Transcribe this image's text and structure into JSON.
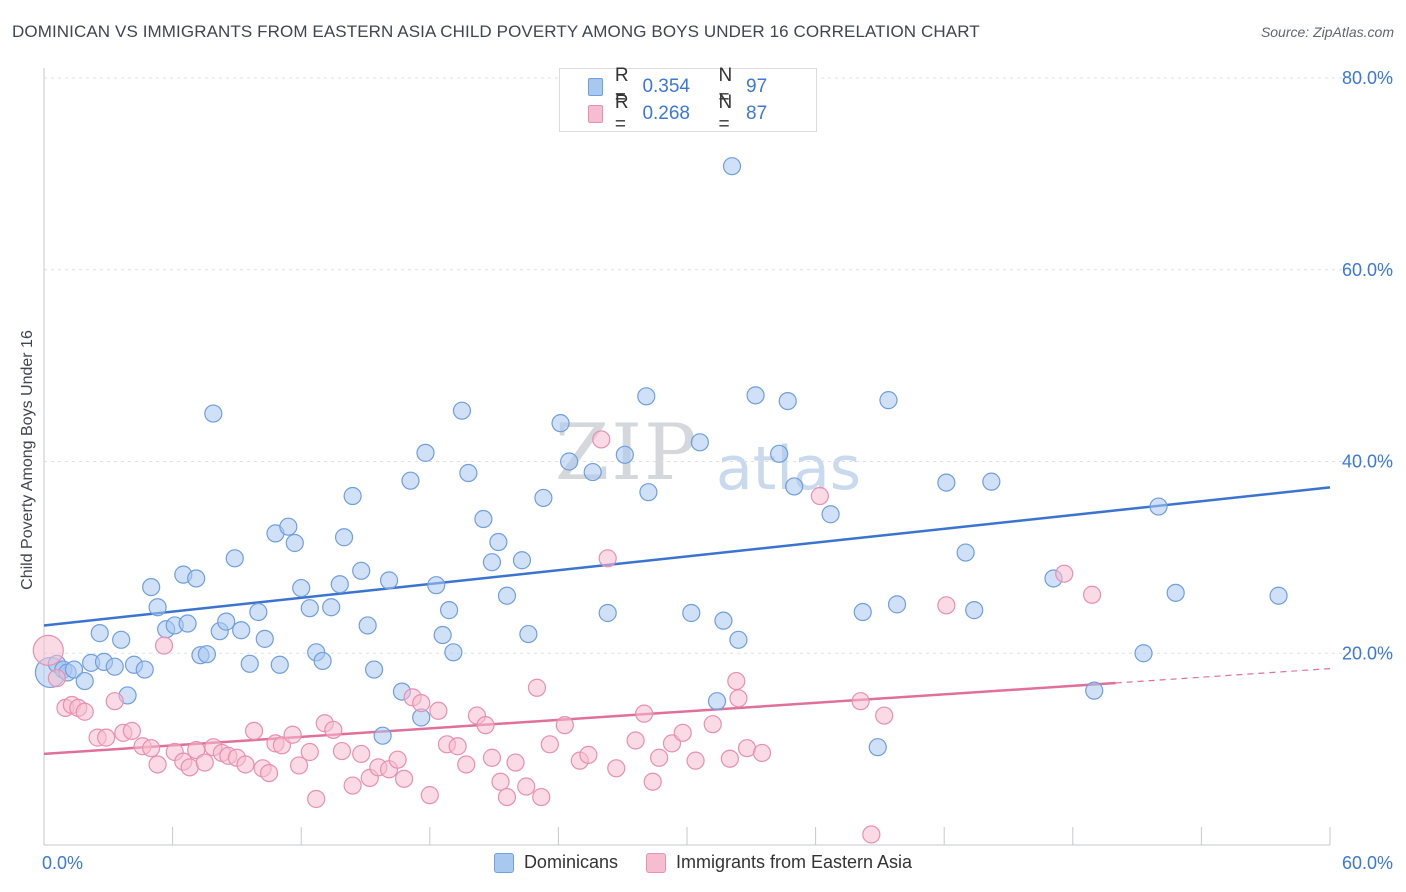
{
  "header": {
    "title": "DOMINICAN VS IMMIGRANTS FROM EASTERN ASIA CHILD POVERTY AMONG BOYS UNDER 16 CORRELATION CHART",
    "source": "Source: ZipAtlas.com"
  },
  "watermark": {
    "zip": "ZIP",
    "atlas": "atlas"
  },
  "legend": {
    "rows": [
      {
        "r_label": "R =",
        "r_value": "0.354",
        "n_label": "N =",
        "n_value": "97"
      },
      {
        "r_label": "R =",
        "r_value": "0.268",
        "n_label": "N =",
        "n_value": "87"
      }
    ]
  },
  "bottom_legend": {
    "series1": "Dominicans",
    "series2": "Immigrants from Eastern Asia"
  },
  "colors": {
    "dominicans_fill": "#a9c8f0",
    "dominicans_stroke": "#6f9fdf",
    "dominicans_line": "#3a73d0",
    "asia_fill": "#f6bdd0",
    "asia_stroke": "#e98fb0",
    "asia_line": "#e0709a",
    "tick_label": "#3b78d8",
    "grid": "#dde1e6"
  },
  "chart_data": {
    "type": "scatter",
    "title": "DOMINICAN VS IMMIGRANTS FROM EASTERN ASIA CHILD POVERTY AMONG BOYS UNDER 16 CORRELATION CHART",
    "xlabel": "",
    "ylabel": "Child Poverty Among Boys Under 16",
    "xlim": [
      0,
      60
    ],
    "ylim": [
      0,
      80
    ],
    "x_tick_labels": [
      "0.0%",
      "60.0%"
    ],
    "y_ticks": [
      20,
      40,
      60,
      80
    ],
    "y_tick_labels": [
      "20.0%",
      "40.0%",
      "60.0%",
      "80.0%"
    ],
    "grid": true,
    "legend_position": "top-center",
    "series": [
      {
        "name": "Dominicans",
        "r": 0.354,
        "n": 97,
        "trend": {
          "x": [
            0,
            60
          ],
          "y": [
            22.9,
            37.3
          ]
        },
        "points": [
          [
            0.3,
            18.0,
            2
          ],
          [
            0.6,
            18.9,
            1
          ],
          [
            0.9,
            18.3,
            1
          ],
          [
            1.1,
            18.0,
            1
          ],
          [
            1.4,
            18.3,
            1
          ],
          [
            1.9,
            17.1,
            1
          ],
          [
            2.2,
            19.0,
            1
          ],
          [
            2.6,
            22.1,
            1
          ],
          [
            2.8,
            19.1,
            1
          ],
          [
            3.3,
            18.6,
            1
          ],
          [
            3.6,
            21.4,
            1
          ],
          [
            3.9,
            15.6,
            1
          ],
          [
            4.2,
            18.8,
            1
          ],
          [
            4.7,
            18.3,
            1
          ],
          [
            5.0,
            26.9,
            1
          ],
          [
            5.3,
            24.8,
            1
          ],
          [
            5.7,
            22.5,
            1
          ],
          [
            6.1,
            22.9,
            1
          ],
          [
            6.5,
            28.2,
            1
          ],
          [
            6.7,
            23.1,
            1
          ],
          [
            7.1,
            27.8,
            1
          ],
          [
            7.3,
            19.8,
            1
          ],
          [
            7.6,
            19.9,
            1
          ],
          [
            7.9,
            45.0,
            1
          ],
          [
            8.2,
            22.3,
            1
          ],
          [
            8.5,
            23.3,
            1
          ],
          [
            8.9,
            29.9,
            1
          ],
          [
            9.2,
            22.4,
            1
          ],
          [
            9.6,
            18.9,
            1
          ],
          [
            10.0,
            24.3,
            1
          ],
          [
            10.3,
            21.5,
            1
          ],
          [
            10.8,
            32.5,
            1
          ],
          [
            11.0,
            18.8,
            1
          ],
          [
            11.4,
            33.2,
            1
          ],
          [
            11.7,
            31.5,
            1
          ],
          [
            12.0,
            26.8,
            1
          ],
          [
            12.4,
            24.7,
            1
          ],
          [
            12.7,
            20.1,
            1
          ],
          [
            13.0,
            19.2,
            1
          ],
          [
            13.4,
            24.8,
            1
          ],
          [
            13.8,
            27.2,
            1
          ],
          [
            14.0,
            32.1,
            1
          ],
          [
            14.4,
            36.4,
            1
          ],
          [
            14.8,
            28.6,
            1
          ],
          [
            15.1,
            22.9,
            1
          ],
          [
            15.4,
            18.3,
            1
          ],
          [
            15.8,
            11.4,
            1
          ],
          [
            16.1,
            27.6,
            1
          ],
          [
            16.7,
            16.0,
            1
          ],
          [
            17.1,
            38.0,
            1
          ],
          [
            17.6,
            13.3,
            1
          ],
          [
            17.8,
            40.9,
            1
          ],
          [
            18.3,
            27.1,
            1
          ],
          [
            18.6,
            21.9,
            1
          ],
          [
            18.9,
            24.5,
            1
          ],
          [
            19.1,
            20.1,
            1
          ],
          [
            19.5,
            45.3,
            1
          ],
          [
            19.8,
            38.8,
            1
          ],
          [
            20.5,
            34.0,
            1
          ],
          [
            20.9,
            29.5,
            1
          ],
          [
            21.2,
            31.6,
            1
          ],
          [
            21.6,
            26.0,
            1
          ],
          [
            22.3,
            29.7,
            1
          ],
          [
            22.6,
            22.0,
            1
          ],
          [
            23.3,
            36.2,
            1
          ],
          [
            24.1,
            44.0,
            1
          ],
          [
            24.5,
            40.0,
            1
          ],
          [
            25.6,
            38.9,
            1
          ],
          [
            26.3,
            24.2,
            1
          ],
          [
            27.1,
            40.7,
            1
          ],
          [
            28.1,
            46.8,
            1
          ],
          [
            28.2,
            36.8,
            1
          ],
          [
            30.2,
            24.2,
            1
          ],
          [
            30.6,
            42.0,
            1
          ],
          [
            31.4,
            15.0,
            1
          ],
          [
            31.7,
            23.4,
            1
          ],
          [
            32.1,
            70.8,
            1
          ],
          [
            32.4,
            21.4,
            1
          ],
          [
            33.2,
            46.9,
            1
          ],
          [
            34.3,
            40.8,
            1
          ],
          [
            34.7,
            46.3,
            1
          ],
          [
            35.0,
            37.4,
            1
          ],
          [
            36.7,
            34.5,
            1
          ],
          [
            38.2,
            24.3,
            1
          ],
          [
            38.9,
            10.2,
            1
          ],
          [
            39.4,
            46.4,
            1
          ],
          [
            39.8,
            25.1,
            1
          ],
          [
            42.1,
            37.8,
            1
          ],
          [
            43.0,
            30.5,
            1
          ],
          [
            43.4,
            24.5,
            1
          ],
          [
            44.2,
            37.9,
            1
          ],
          [
            47.1,
            27.8,
            1
          ],
          [
            49.0,
            16.1,
            1
          ],
          [
            51.3,
            20.0,
            1
          ],
          [
            52.0,
            35.3,
            1
          ],
          [
            52.8,
            26.3,
            1
          ],
          [
            57.6,
            26.0,
            1
          ]
        ]
      },
      {
        "name": "Immigrants from Eastern Asia",
        "r": 0.268,
        "n": 87,
        "trend": {
          "x": [
            0,
            50
          ],
          "y": [
            9.5,
            16.9
          ]
        },
        "trend_extension": {
          "x": [
            50,
            60
          ],
          "y": [
            16.9,
            18.4
          ]
        },
        "points": [
          [
            0.2,
            20.3,
            2
          ],
          [
            0.6,
            17.4,
            1
          ],
          [
            1.0,
            14.3,
            1
          ],
          [
            1.3,
            14.6,
            1
          ],
          [
            1.6,
            14.3,
            1
          ],
          [
            1.9,
            13.9,
            1
          ],
          [
            2.5,
            11.2,
            1
          ],
          [
            2.9,
            11.2,
            1
          ],
          [
            3.3,
            15.0,
            1
          ],
          [
            3.7,
            11.7,
            1
          ],
          [
            4.1,
            11.9,
            1
          ],
          [
            4.6,
            10.3,
            1
          ],
          [
            5.0,
            10.1,
            1
          ],
          [
            5.3,
            8.4,
            1
          ],
          [
            5.6,
            20.8,
            1
          ],
          [
            6.1,
            9.7,
            1
          ],
          [
            6.5,
            8.7,
            1
          ],
          [
            6.8,
            8.1,
            1
          ],
          [
            7.1,
            9.9,
            1
          ],
          [
            7.5,
            8.6,
            1
          ],
          [
            7.9,
            10.2,
            1
          ],
          [
            8.3,
            9.6,
            1
          ],
          [
            8.6,
            9.3,
            1
          ],
          [
            9.0,
            9.1,
            1
          ],
          [
            9.4,
            8.4,
            1
          ],
          [
            9.8,
            11.9,
            1
          ],
          [
            10.2,
            8.0,
            1
          ],
          [
            10.5,
            7.5,
            1
          ],
          [
            10.8,
            10.6,
            1
          ],
          [
            11.1,
            10.4,
            1
          ],
          [
            11.6,
            11.5,
            1
          ],
          [
            11.9,
            8.3,
            1
          ],
          [
            12.4,
            9.7,
            1
          ],
          [
            12.7,
            4.8,
            1
          ],
          [
            13.1,
            12.7,
            1
          ],
          [
            13.5,
            12.0,
            1
          ],
          [
            13.9,
            9.8,
            1
          ],
          [
            14.4,
            6.2,
            1
          ],
          [
            14.8,
            9.5,
            1
          ],
          [
            15.2,
            7.0,
            1
          ],
          [
            15.6,
            8.1,
            1
          ],
          [
            16.1,
            7.9,
            1
          ],
          [
            16.5,
            8.9,
            1
          ],
          [
            16.8,
            6.9,
            1
          ],
          [
            17.2,
            15.4,
            1
          ],
          [
            17.6,
            14.8,
            1
          ],
          [
            18.0,
            5.2,
            1
          ],
          [
            18.4,
            14.0,
            1
          ],
          [
            18.8,
            10.5,
            1
          ],
          [
            19.3,
            10.3,
            1
          ],
          [
            19.7,
            8.4,
            1
          ],
          [
            20.2,
            13.5,
            1
          ],
          [
            20.6,
            12.5,
            1
          ],
          [
            20.9,
            9.1,
            1
          ],
          [
            21.3,
            6.6,
            1
          ],
          [
            21.6,
            5.0,
            1
          ],
          [
            22.0,
            8.6,
            1
          ],
          [
            22.5,
            6.1,
            1
          ],
          [
            23.0,
            16.4,
            1
          ],
          [
            23.2,
            5.0,
            1
          ],
          [
            23.6,
            10.5,
            1
          ],
          [
            24.3,
            12.5,
            1
          ],
          [
            25.0,
            8.8,
            1
          ],
          [
            25.4,
            9.4,
            1
          ],
          [
            26.0,
            42.3,
            1
          ],
          [
            26.3,
            29.9,
            1
          ],
          [
            26.7,
            8.0,
            1
          ],
          [
            27.6,
            10.9,
            1
          ],
          [
            28.0,
            13.7,
            1
          ],
          [
            28.4,
            6.6,
            1
          ],
          [
            28.7,
            9.1,
            1
          ],
          [
            29.3,
            10.6,
            1
          ],
          [
            29.8,
            11.7,
            1
          ],
          [
            30.4,
            8.8,
            1
          ],
          [
            31.2,
            12.6,
            1
          ],
          [
            32.0,
            9.0,
            1
          ],
          [
            32.3,
            17.1,
            1
          ],
          [
            32.4,
            15.3,
            1
          ],
          [
            32.8,
            10.1,
            1
          ],
          [
            33.5,
            9.6,
            1
          ],
          [
            36.2,
            36.4,
            1
          ],
          [
            38.1,
            15.0,
            1
          ],
          [
            38.6,
            1.1,
            1
          ],
          [
            39.2,
            13.5,
            1
          ],
          [
            42.1,
            25.0,
            1
          ],
          [
            47.6,
            28.3,
            1
          ],
          [
            48.9,
            26.1,
            1
          ]
        ]
      }
    ]
  }
}
